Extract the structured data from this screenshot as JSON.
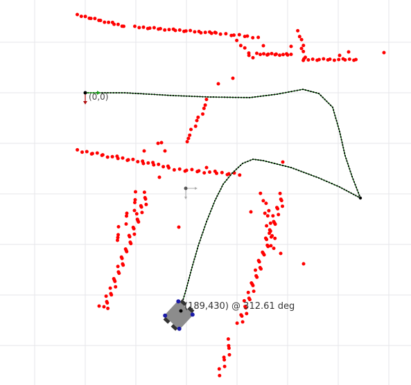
{
  "view": {
    "title": "",
    "origin_label": "(0,0)",
    "robot_pose_label": "(189,430) @ 312.61 deg"
  },
  "colors": {
    "background": "#ffffff",
    "grid": "#e6e6ea",
    "laser_point": "#ff0000",
    "path_line": "#0a6a0a",
    "path_dot": "#000000",
    "robot_body": "#8c8c8c",
    "robot_wheel": "#333333",
    "robot_sensor": "#1a1aa8",
    "axis_x": "#1aa01a",
    "axis_y": "#b01010"
  },
  "icons": {
    "origin_marker": "coordinate-axes-icon",
    "waypoint_marker": "coordinate-axes-icon",
    "robot": "robot-icon"
  }
}
